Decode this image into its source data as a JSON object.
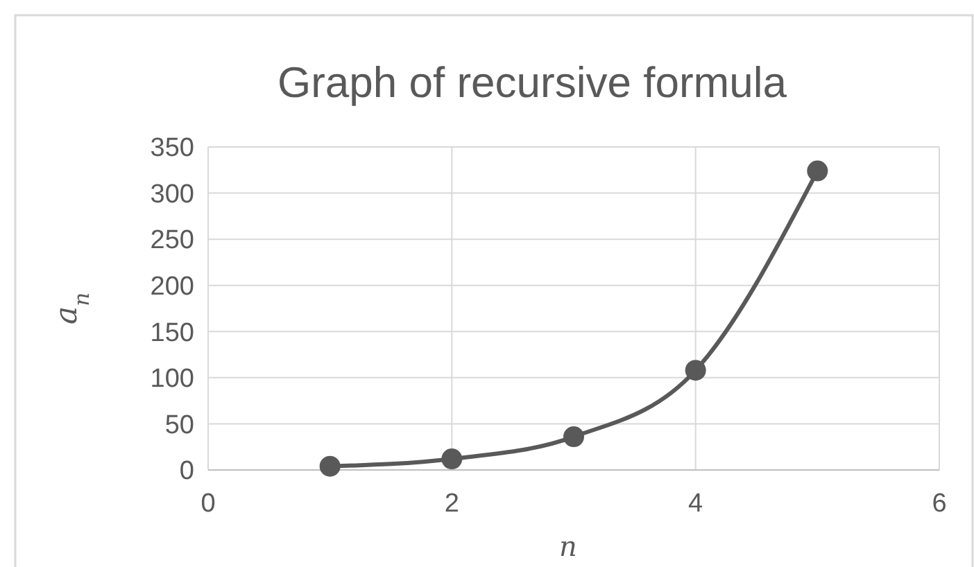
{
  "chart_data": {
    "type": "line",
    "title": "Graph of recursive formula",
    "xlabel": "n",
    "ylabel": "a$_{n}$",
    "x": [
      1,
      2,
      3,
      4,
      5
    ],
    "series": [
      {
        "color": "#595959",
        "values": [
          4,
          12,
          36,
          108,
          324
        ]
      }
    ],
    "xlim": [
      0,
      6
    ],
    "xticks": [
      0,
      2,
      4,
      6
    ],
    "ylim": [
      0,
      350
    ],
    "yticks": [
      0,
      50,
      100,
      150,
      200,
      250,
      300,
      350
    ],
    "grid": true,
    "marker": "circle",
    "line_style": "solid"
  }
}
